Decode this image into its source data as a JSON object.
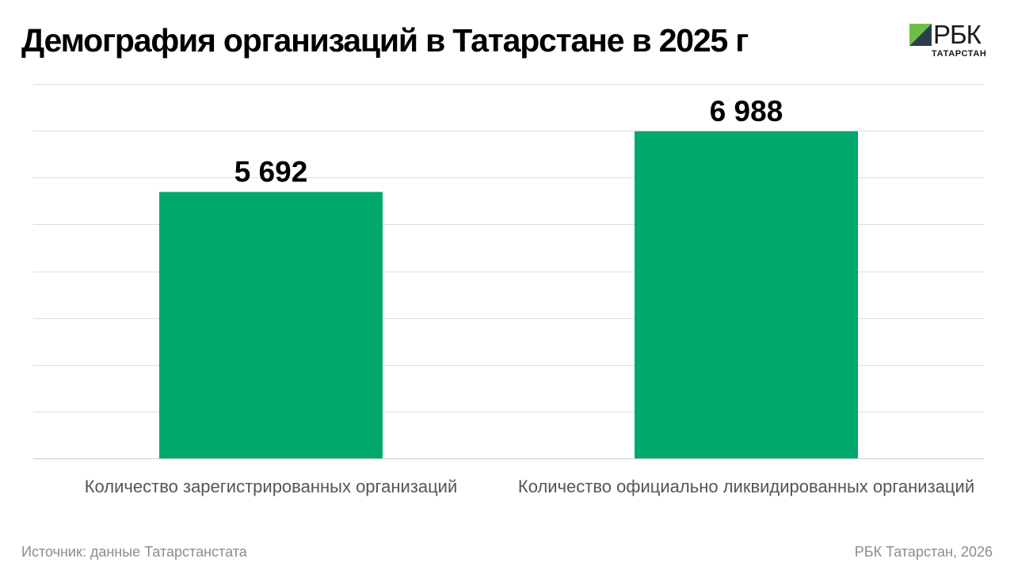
{
  "header": {
    "title": "Демография организаций в Татарстане в 2025 г"
  },
  "logo": {
    "word": "РБК",
    "sub": "ТАТАРСТАН",
    "icon": "rbc-logo-mark"
  },
  "footer": {
    "source": "Источник: данные Татарстанстата",
    "credit": "РБК Татарстан, 2026"
  },
  "colors": {
    "bar": "#00a86b",
    "grid": "#dddddd",
    "logo_dark": "#2d3c4d",
    "logo_green": "#6cc04a"
  },
  "chart_data": {
    "type": "bar",
    "title": "Демография организаций в Татарстане в 2025 г",
    "categories": [
      "Количество зарегистрированных организаций",
      "Количество официально ликвидированных организаций"
    ],
    "values": [
      5692,
      6988
    ],
    "value_labels": [
      "5 692",
      "6 988"
    ],
    "ylim": [
      0,
      8000
    ],
    "grid": true,
    "xlabel": "",
    "ylabel": ""
  }
}
